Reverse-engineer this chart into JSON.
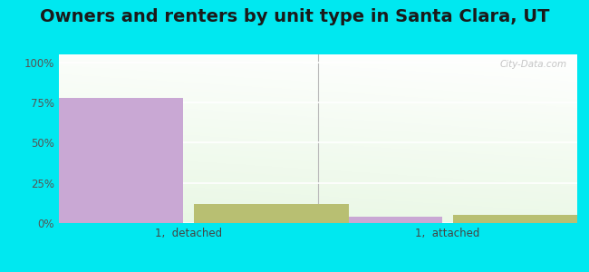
{
  "title": "Owners and renters by unit type in Santa Clara, UT",
  "categories": [
    "1,  detached",
    "1,  attached"
  ],
  "owner_values": [
    78,
    4
  ],
  "renter_values": [
    12,
    5
  ],
  "owner_color": "#c9a8d4",
  "renter_color": "#b8bf72",
  "yticks": [
    0,
    25,
    50,
    75,
    100
  ],
  "ytick_labels": [
    "0%",
    "25%",
    "50%",
    "75%",
    "100%"
  ],
  "ylim": [
    0,
    105
  ],
  "bar_width": 0.3,
  "outer_bg": "#00e8f0",
  "watermark": "City-Data.com",
  "title_fontsize": 14,
  "tick_fontsize": 8.5,
  "legend_fontsize": 9,
  "group_positions": [
    0.25,
    0.75
  ],
  "xlim": [
    0,
    1
  ]
}
